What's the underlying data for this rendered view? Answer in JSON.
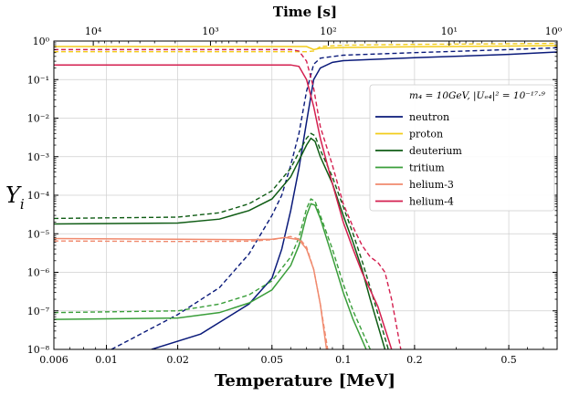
{
  "chart_data": {
    "type": "line",
    "title": "",
    "xlabel": "Temperature [MeV]",
    "ylabel": "Y",
    "ylabel_sub": "i",
    "top_axis_label": "Time [s]",
    "xscale": "log",
    "yscale": "log",
    "xlim": [
      0.006,
      0.8
    ],
    "ylim": [
      1e-08,
      1
    ],
    "grid": true,
    "legend_position": "right",
    "legend_title": "m₄ = 10GeV, |Uₑ₄|² = 10⁻¹⁷·⁹",
    "x_ticks": [
      {
        "value": 0.006,
        "label": "0.006"
      },
      {
        "value": 0.01,
        "label": "0.01"
      },
      {
        "value": 0.02,
        "label": "0.02"
      },
      {
        "value": 0.05,
        "label": "0.05"
      },
      {
        "value": 0.1,
        "label": "0.1"
      },
      {
        "value": 0.2,
        "label": "0.2"
      },
      {
        "value": 0.5,
        "label": "0.5"
      }
    ],
    "y_ticks": [
      {
        "value": 1,
        "label": "10⁰"
      },
      {
        "value": 0.1,
        "label": "10⁻¹"
      },
      {
        "value": 0.01,
        "label": "10⁻²"
      },
      {
        "value": 0.001,
        "label": "10⁻³"
      },
      {
        "value": 0.0001,
        "label": "10⁻⁴"
      },
      {
        "value": 1e-05,
        "label": "10⁻⁵"
      },
      {
        "value": 1e-06,
        "label": "10⁻⁶"
      },
      {
        "value": 1e-07,
        "label": "10⁻⁷"
      },
      {
        "value": 1e-08,
        "label": "10⁻⁸"
      }
    ],
    "top_ticks": [
      {
        "value": 0.0088,
        "label": "10⁴"
      },
      {
        "value": 0.0275,
        "label": "10³"
      },
      {
        "value": 0.0865,
        "label": "10²"
      },
      {
        "value": 0.28,
        "label": "10¹"
      },
      {
        "value": 0.8,
        "label": "10⁰"
      }
    ],
    "series": [
      {
        "name": "neutron",
        "color": "#0a1a7a",
        "solid": [
          [
            0.0155,
            1e-08
          ],
          [
            0.025,
            2.5e-08
          ],
          [
            0.04,
            1.5e-07
          ],
          [
            0.05,
            7e-07
          ],
          [
            0.055,
            4e-06
          ],
          [
            0.06,
            4e-05
          ],
          [
            0.065,
            0.0005
          ],
          [
            0.07,
            0.008
          ],
          [
            0.075,
            0.1
          ],
          [
            0.08,
            0.2
          ],
          [
            0.09,
            0.28
          ],
          [
            0.1,
            0.31
          ],
          [
            0.2,
            0.37
          ],
          [
            0.5,
            0.45
          ],
          [
            0.8,
            0.52
          ]
        ],
        "dashed": [
          [
            0.0105,
            1e-08
          ],
          [
            0.02,
            8e-08
          ],
          [
            0.03,
            4e-07
          ],
          [
            0.04,
            3e-06
          ],
          [
            0.05,
            3e-05
          ],
          [
            0.055,
            0.0001
          ],
          [
            0.06,
            0.0006
          ],
          [
            0.065,
            0.004
          ],
          [
            0.07,
            0.05
          ],
          [
            0.075,
            0.25
          ],
          [
            0.08,
            0.36
          ],
          [
            0.1,
            0.43
          ],
          [
            0.2,
            0.5
          ],
          [
            0.5,
            0.6
          ],
          [
            0.8,
            0.67
          ]
        ]
      },
      {
        "name": "proton",
        "color": "#f2cc1a",
        "solid": [
          [
            0.006,
            0.72
          ],
          [
            0.07,
            0.72
          ],
          [
            0.075,
            0.6
          ],
          [
            0.08,
            0.65
          ],
          [
            0.1,
            0.68
          ],
          [
            0.2,
            0.71
          ],
          [
            0.5,
            0.74
          ],
          [
            0.8,
            0.76
          ]
        ],
        "dashed": [
          [
            0.006,
            0.53
          ],
          [
            0.07,
            0.53
          ],
          [
            0.075,
            0.55
          ],
          [
            0.08,
            0.72
          ],
          [
            0.1,
            0.78
          ],
          [
            0.2,
            0.82
          ],
          [
            0.5,
            0.85
          ],
          [
            0.8,
            0.87
          ]
        ]
      },
      {
        "name": "deuterium",
        "color": "#0f5c14",
        "solid": [
          [
            0.006,
            1.8e-05
          ],
          [
            0.02,
            1.9e-05
          ],
          [
            0.03,
            2.4e-05
          ],
          [
            0.04,
            4e-05
          ],
          [
            0.05,
            8e-05
          ],
          [
            0.06,
            0.0003
          ],
          [
            0.065,
            0.0008
          ],
          [
            0.07,
            0.002
          ],
          [
            0.073,
            0.003
          ],
          [
            0.076,
            0.0025
          ],
          [
            0.08,
            0.001
          ],
          [
            0.09,
            0.0002
          ],
          [
            0.1,
            3e-05
          ],
          [
            0.11,
            6e-06
          ],
          [
            0.12,
            1.2e-06
          ],
          [
            0.13,
            2e-07
          ],
          [
            0.15,
            1e-08
          ]
        ],
        "dashed": [
          [
            0.006,
            2.5e-05
          ],
          [
            0.02,
            2.7e-05
          ],
          [
            0.03,
            3.5e-05
          ],
          [
            0.04,
            6e-05
          ],
          [
            0.05,
            0.00013
          ],
          [
            0.06,
            0.0005
          ],
          [
            0.065,
            0.0013
          ],
          [
            0.07,
            0.003
          ],
          [
            0.073,
            0.004
          ],
          [
            0.076,
            0.0035
          ],
          [
            0.08,
            0.0015
          ],
          [
            0.09,
            0.0003
          ],
          [
            0.1,
            5e-05
          ],
          [
            0.11,
            1e-05
          ],
          [
            0.12,
            2e-06
          ],
          [
            0.13,
            4e-07
          ],
          [
            0.155,
            1e-08
          ]
        ]
      },
      {
        "name": "tritium",
        "color": "#3a9e3a",
        "solid": [
          [
            0.006,
            6e-08
          ],
          [
            0.02,
            6.5e-08
          ],
          [
            0.03,
            9e-08
          ],
          [
            0.04,
            1.6e-07
          ],
          [
            0.05,
            3.5e-07
          ],
          [
            0.06,
            1.5e-06
          ],
          [
            0.065,
            5e-06
          ],
          [
            0.07,
            3e-05
          ],
          [
            0.073,
            6e-05
          ],
          [
            0.076,
            5.5e-05
          ],
          [
            0.08,
            2.5e-05
          ],
          [
            0.09,
            2.5e-06
          ],
          [
            0.1,
            3e-07
          ],
          [
            0.11,
            6e-08
          ],
          [
            0.125,
            1e-08
          ]
        ],
        "dashed": [
          [
            0.006,
            9e-08
          ],
          [
            0.02,
            1e-07
          ],
          [
            0.03,
            1.5e-07
          ],
          [
            0.04,
            2.6e-07
          ],
          [
            0.05,
            6e-07
          ],
          [
            0.06,
            2.5e-06
          ],
          [
            0.065,
            8e-06
          ],
          [
            0.07,
            4.5e-05
          ],
          [
            0.073,
            8e-05
          ],
          [
            0.076,
            7e-05
          ],
          [
            0.08,
            3e-05
          ],
          [
            0.09,
            4e-06
          ],
          [
            0.1,
            5e-07
          ],
          [
            0.11,
            1e-07
          ],
          [
            0.13,
            1e-08
          ]
        ]
      },
      {
        "name": "helium-3",
        "color": "#f08a6e",
        "solid": [
          [
            0.006,
            7.5e-06
          ],
          [
            0.02,
            7.2e-06
          ],
          [
            0.04,
            7e-06
          ],
          [
            0.05,
            7.2e-06
          ],
          [
            0.057,
            8e-06
          ],
          [
            0.065,
            7e-06
          ],
          [
            0.07,
            4e-06
          ],
          [
            0.075,
            1.2e-06
          ],
          [
            0.08,
            1.5e-07
          ],
          [
            0.085,
            1e-08
          ]
        ],
        "dashed": [
          [
            0.006,
            6.5e-06
          ],
          [
            0.02,
            6.3e-06
          ],
          [
            0.04,
            6.4e-06
          ],
          [
            0.05,
            7e-06
          ],
          [
            0.06,
            8.5e-06
          ],
          [
            0.066,
            7e-06
          ],
          [
            0.07,
            4.5e-06
          ],
          [
            0.075,
            1.2e-06
          ],
          [
            0.08,
            1.5e-07
          ],
          [
            0.086,
            1e-08
          ]
        ]
      },
      {
        "name": "helium-4",
        "color": "#d41f4f",
        "solid": [
          [
            0.006,
            0.24
          ],
          [
            0.06,
            0.24
          ],
          [
            0.065,
            0.22
          ],
          [
            0.07,
            0.1
          ],
          [
            0.075,
            0.02
          ],
          [
            0.08,
            0.003
          ],
          [
            0.09,
            0.0002
          ],
          [
            0.1,
            2e-05
          ],
          [
            0.11,
            4e-06
          ],
          [
            0.12,
            1e-06
          ],
          [
            0.14,
            1.3e-07
          ],
          [
            0.16,
            1e-08
          ]
        ],
        "dashed": [
          [
            0.006,
            0.6
          ],
          [
            0.06,
            0.6
          ],
          [
            0.065,
            0.55
          ],
          [
            0.07,
            0.3
          ],
          [
            0.075,
            0.06
          ],
          [
            0.08,
            0.006
          ],
          [
            0.09,
            0.0006
          ],
          [
            0.1,
            6e-05
          ],
          [
            0.11,
            1.5e-05
          ],
          [
            0.12,
            5e-06
          ],
          [
            0.13,
            2.5e-06
          ],
          [
            0.14,
            1.8e-06
          ],
          [
            0.15,
            1e-06
          ],
          [
            0.16,
            2e-07
          ],
          [
            0.175,
            1e-08
          ]
        ]
      }
    ]
  }
}
